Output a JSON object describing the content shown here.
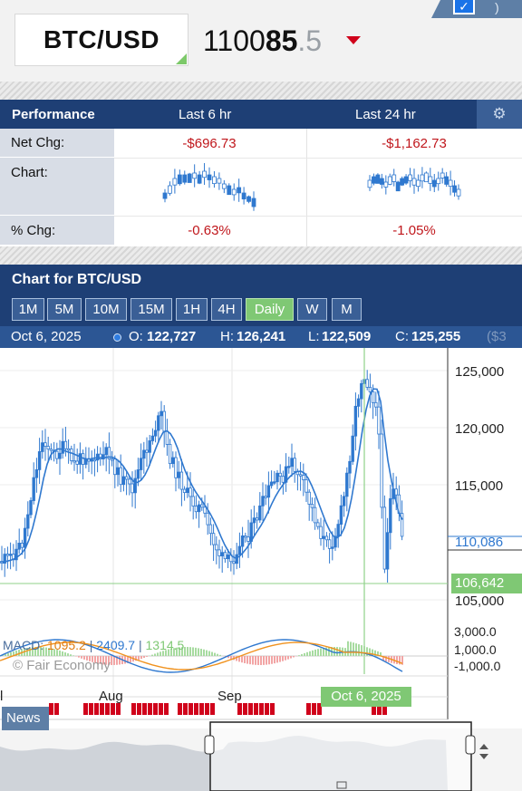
{
  "header": {
    "symbol": "BTC/USD",
    "price_main": "1100",
    "price_bold": "85",
    "price_frac": ".5"
  },
  "performance": {
    "title": "Performance",
    "col1": "Last 6 hr",
    "col2": "Last 24 hr",
    "rows": {
      "net_chg": "Net Chg:",
      "chart": "Chart:",
      "pct_chg": "% Chg:"
    },
    "net_chg_6h": "-$696.73",
    "net_chg_24h": "-$1,162.73",
    "pct_chg_6h": "-0.63%",
    "pct_chg_24h": "-1.05%"
  },
  "chart": {
    "title": "Chart for BTC/USD",
    "timeframes": [
      "1M",
      "5M",
      "10M",
      "15M",
      "1H",
      "4H",
      "Daily",
      "W",
      "M"
    ],
    "active_timeframe": "Daily",
    "ohlc": {
      "date": "Oct 6, 2025",
      "o_label": "O:",
      "o": "122,727",
      "h_label": "H:",
      "h": "126,241",
      "l_label": "L:",
      "l": "122,509",
      "c_label": "C:",
      "c": "125,255",
      "extra": "($3"
    },
    "y_ticks": [
      "125,000",
      "120,000",
      "115,000",
      "105,000"
    ],
    "last_price": "110,086",
    "cursor_price": "106,642",
    "macd": {
      "label": "MACD:",
      "v1": "1095.2",
      "sep": "|",
      "v2": "2409.7",
      "v3": "1314.5",
      "ticks": [
        "3,000.0",
        "1,000.0",
        "-1,000.0"
      ]
    },
    "watermark": "© Fair Economy",
    "x_ticks": [
      "l",
      "Aug",
      "Sep"
    ],
    "cursor_date": "Oct 6, 2025",
    "news_label": "News"
  },
  "colors": {
    "header_bg": "#1e3f75",
    "button_bg": "#3a5f96",
    "active_green": "#7fc874",
    "candle_blue": "#2f78cf",
    "negative_red": "#c0171c",
    "macd_orange": "#f0921e"
  }
}
